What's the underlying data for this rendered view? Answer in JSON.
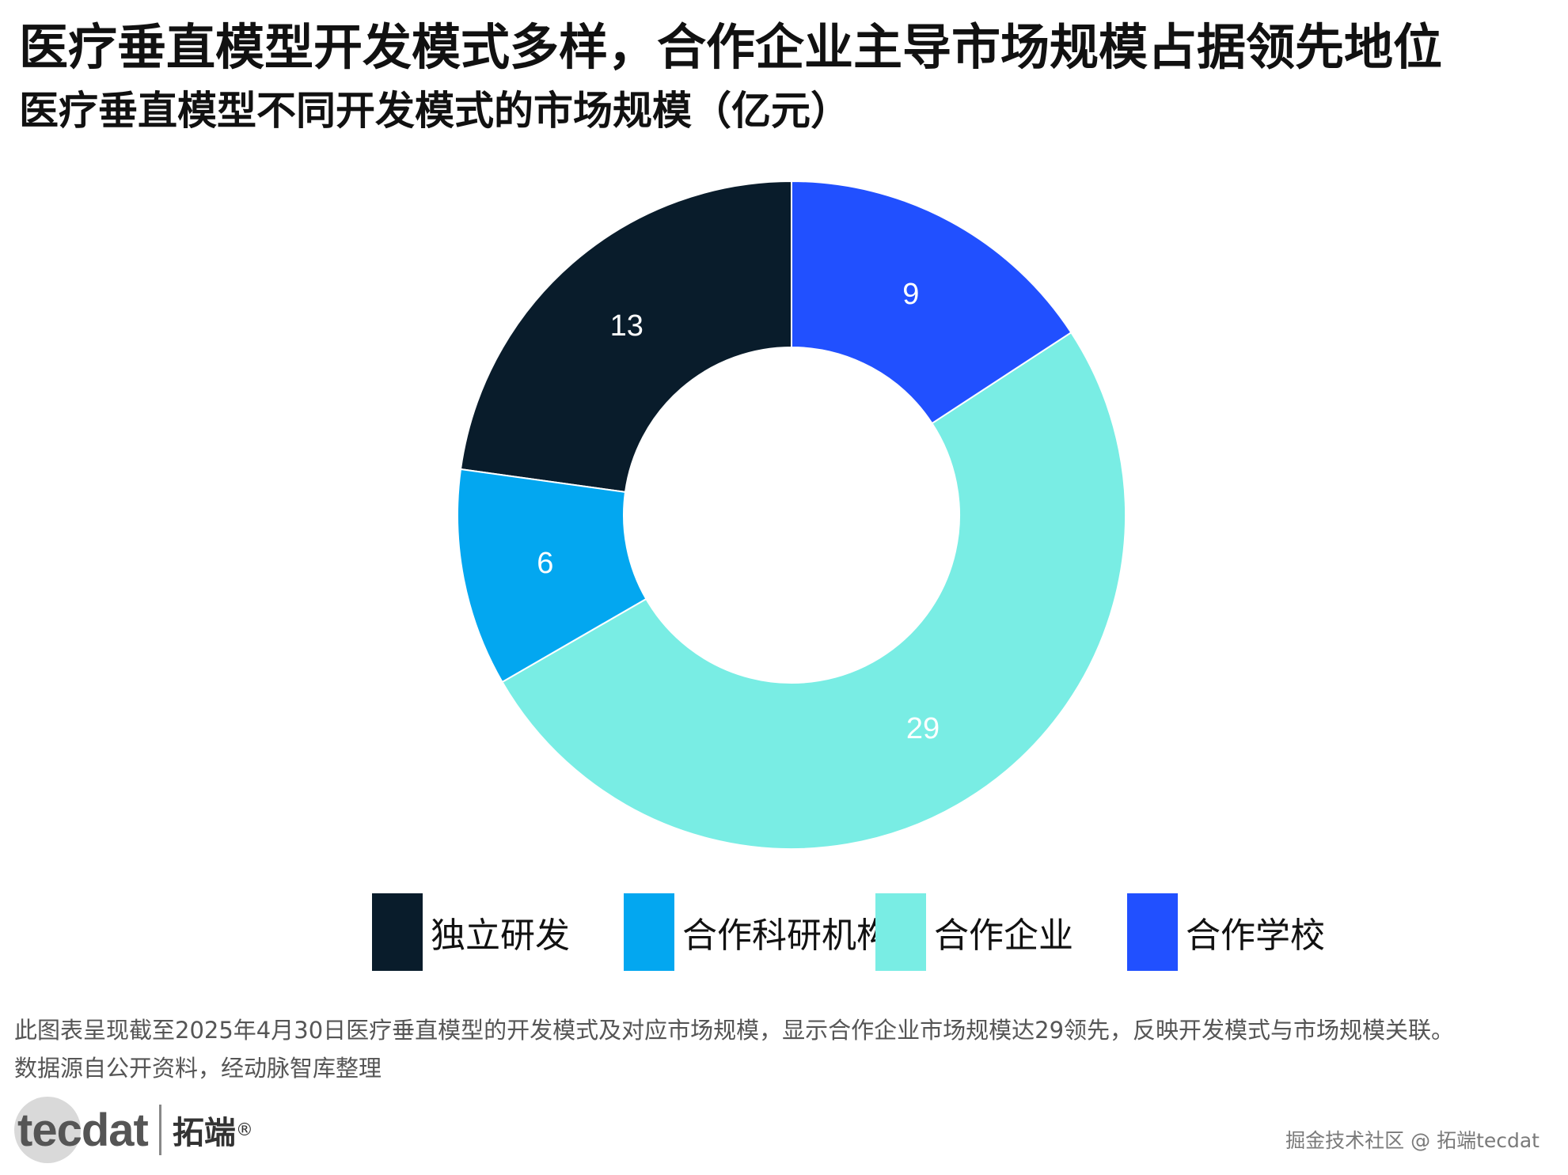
{
  "header": {
    "title": "医疗垂直模型开发模式多样，合作企业主导市场规模占据领先地位",
    "subtitle": "医疗垂直模型不同开发模式的市场规模（亿元）"
  },
  "chart_data": {
    "type": "pie",
    "donut": true,
    "start": "12 o'clock",
    "direction": "counter-clockwise",
    "categories": [
      "独立研发",
      "合作科研机构",
      "合作企业",
      "合作学校"
    ],
    "values": [
      13,
      6,
      29,
      9
    ],
    "colors": [
      "#091c2b",
      "#03a7f0",
      "#79ede4",
      "#2150ff"
    ],
    "label_colors": [
      "#ffffff",
      "#ffffff",
      "#ffffff",
      "#ffffff"
    ],
    "legend_position": "bottom",
    "title": "医疗垂直模型不同开发模式的市场规模（亿元）"
  },
  "legend": {
    "items": [
      {
        "label": "独立研发",
        "color": "#091c2b"
      },
      {
        "label": "合作科研机构",
        "color": "#03a7f0"
      },
      {
        "label": "合作企业",
        "color": "#79ede4"
      },
      {
        "label": "合作学校",
        "color": "#2150ff"
      }
    ]
  },
  "footer": {
    "note": "此图表呈现截至2025年4月30日医疗垂直模型的开发模式及对应市场规模，显示合作企业市场规模达29领先，反映开发模式与市场规模关联。",
    "source": "数据源自公开资料，经动脉智库整理",
    "logo_text": "tecdat",
    "logo_cn": "拓端",
    "logo_reg": "®",
    "watermark": "掘金技术社区 @ 拓端tecdat"
  }
}
